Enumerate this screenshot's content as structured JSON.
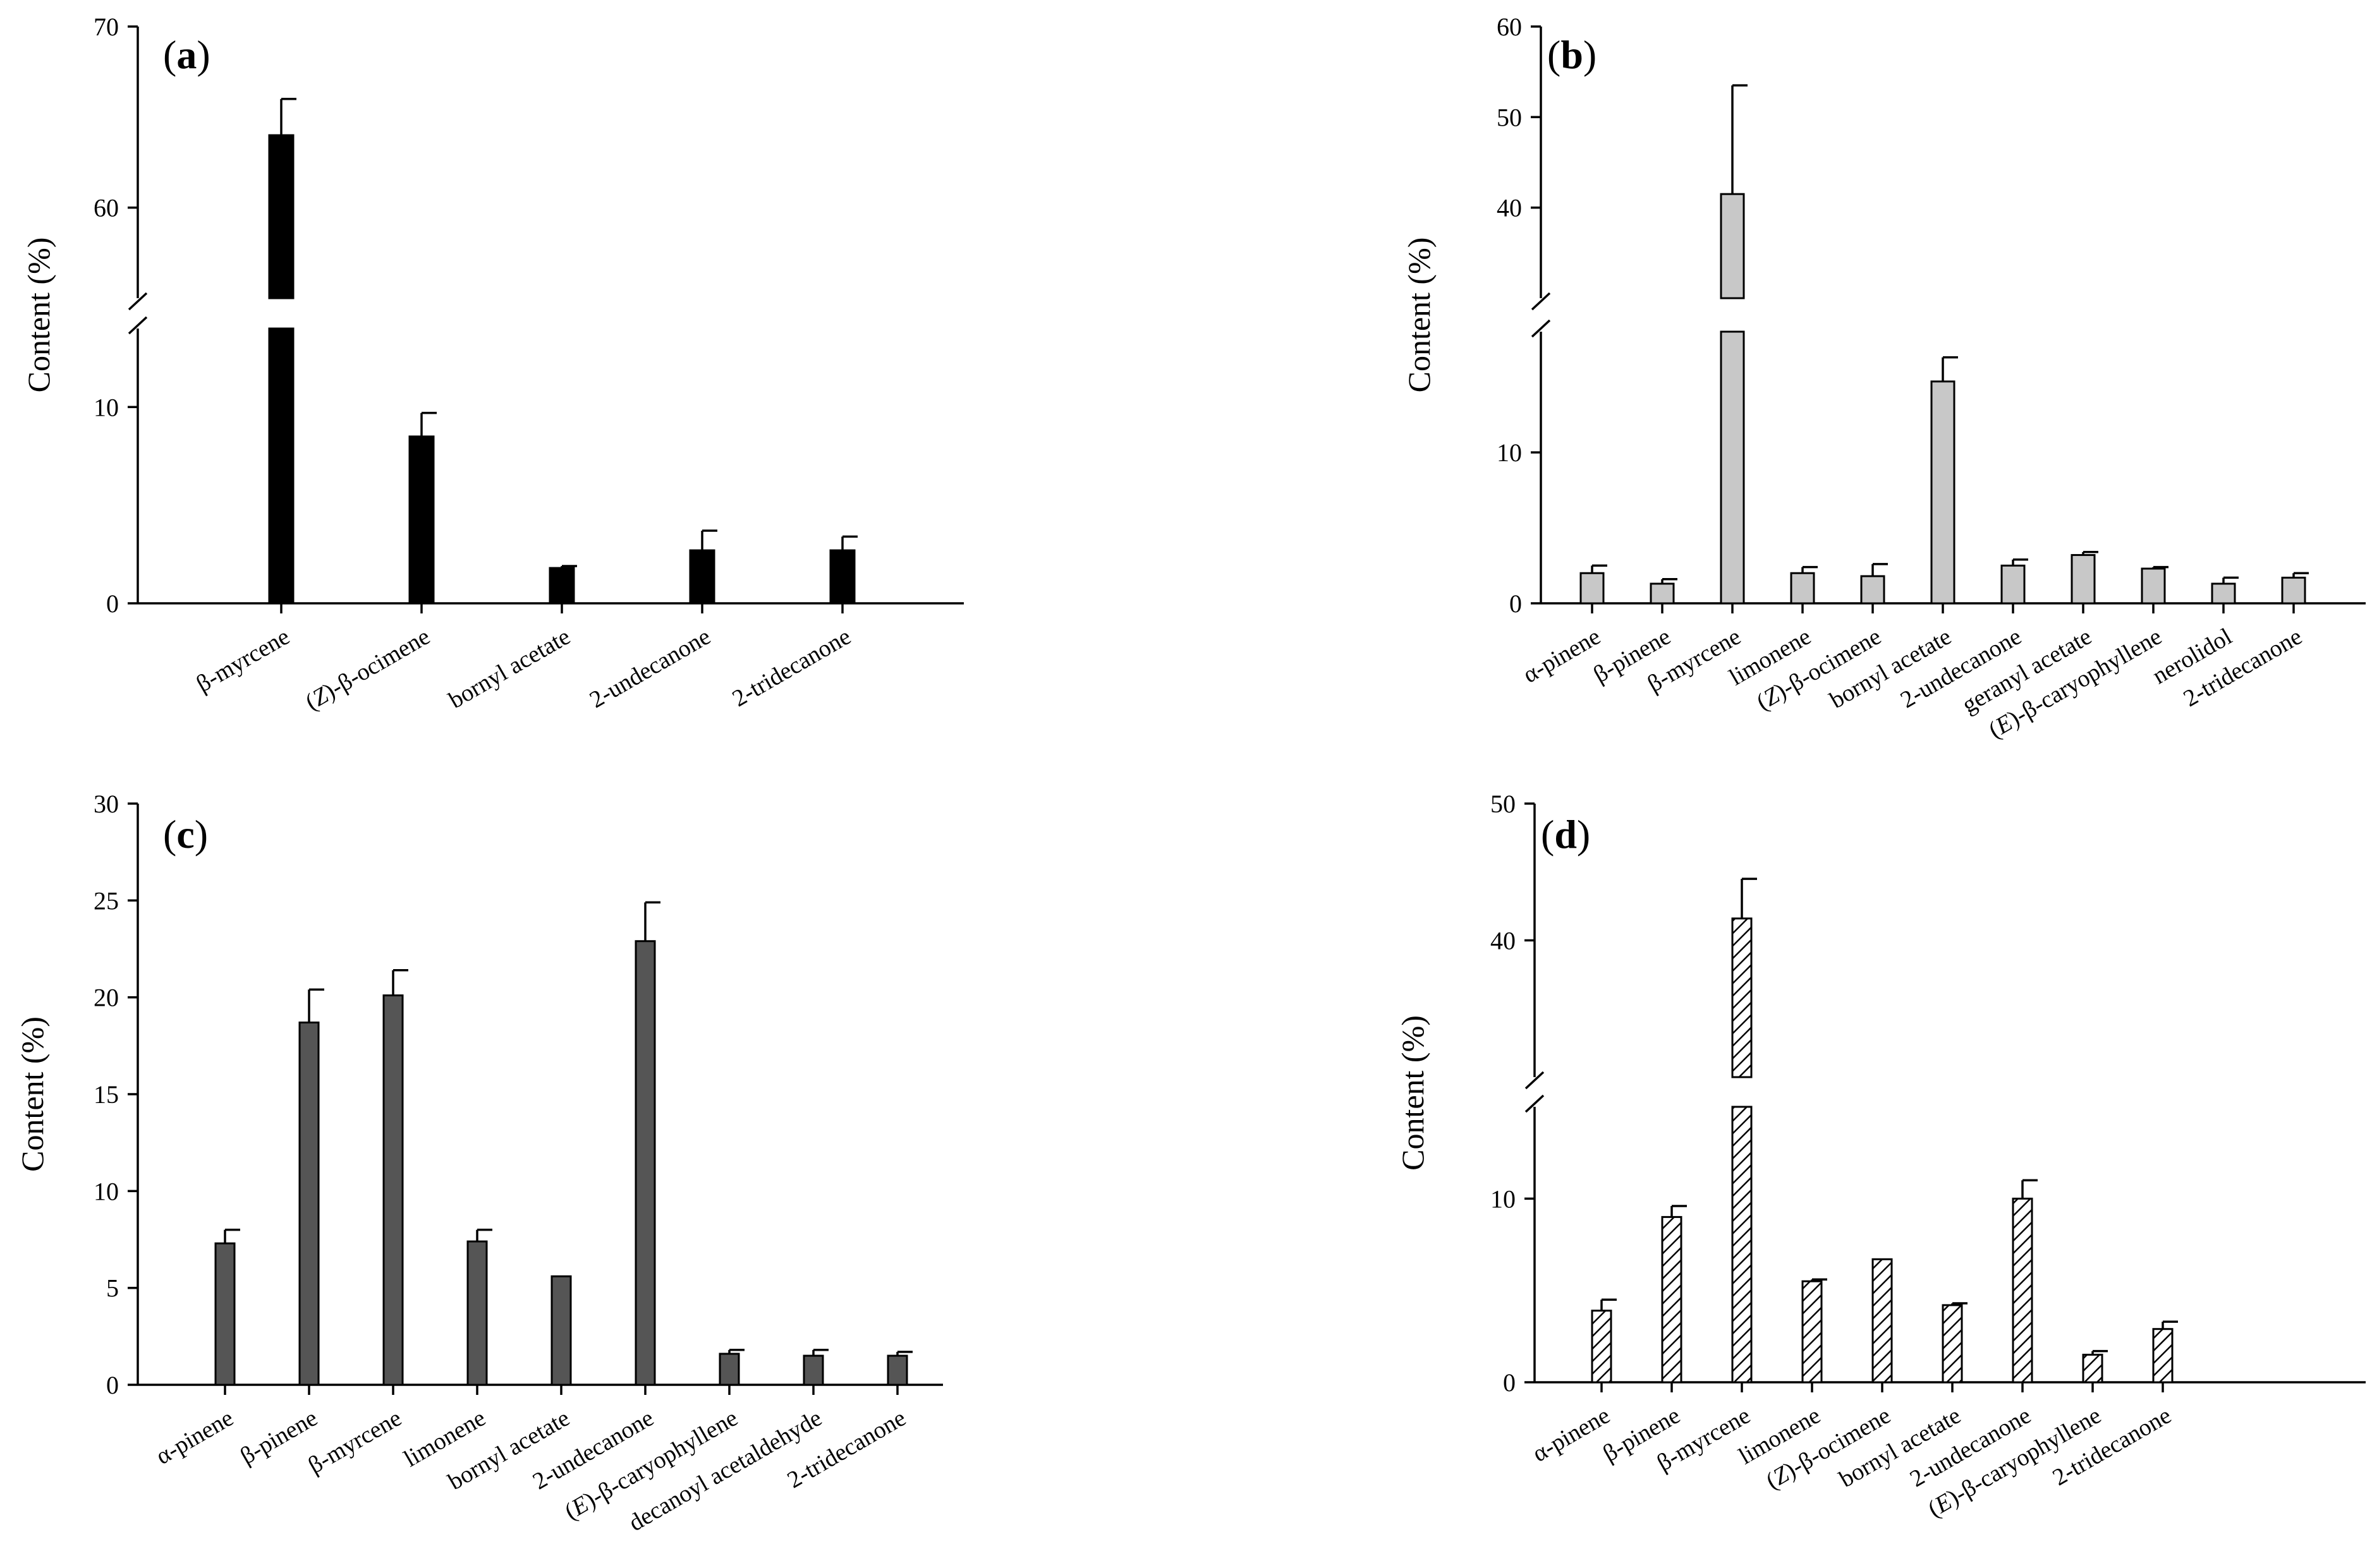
{
  "chart_data": [
    {
      "type": "bar",
      "panel": "a",
      "ylabel": "Content (%)",
      "bar_fill": "#000000",
      "pattern": "solid",
      "y_break": true,
      "lower_ylim": [
        0,
        14
      ],
      "upper_ylim": [
        55,
        70
      ],
      "yticks_lower": [
        0,
        10
      ],
      "yticks_upper": [
        60,
        70
      ],
      "categories": [
        "β-myrcene",
        "(Z)-β-ocimene",
        "bornyl acetate",
        "2-undecanone",
        "2-tridecanone"
      ],
      "values": [
        64.0,
        8.5,
        1.8,
        2.7,
        2.7
      ],
      "errors": [
        2.0,
        1.2,
        0.1,
        1.0,
        0.7
      ]
    },
    {
      "type": "bar",
      "panel": "b",
      "ylabel": "Content (%)",
      "bar_fill": "#c8c8c8",
      "pattern": "solid",
      "y_break": true,
      "lower_ylim": [
        0,
        18
      ],
      "upper_ylim": [
        30,
        60
      ],
      "yticks_lower": [
        0,
        10
      ],
      "yticks_upper": [
        40,
        50,
        60
      ],
      "categories": [
        "α-pinene",
        "β-pinene",
        "β-myrcene",
        "limonene",
        "(Z)-β-ocimene",
        "bornyl acetate",
        "2-undecanone",
        "geranyl acetate",
        "(E)-β-caryophyllene",
        "nerolidol",
        "2-tridecanone"
      ],
      "values": [
        2.0,
        1.3,
        41.5,
        2.0,
        1.8,
        14.7,
        2.5,
        3.2,
        2.3,
        1.3,
        1.7
      ],
      "errors": [
        0.5,
        0.3,
        12.0,
        0.4,
        0.8,
        1.6,
        0.4,
        0.2,
        0.1,
        0.4,
        0.3
      ]
    },
    {
      "type": "bar",
      "panel": "c",
      "ylabel": "Content (%)",
      "bar_fill": "#555555",
      "pattern": "solid",
      "y_break": false,
      "ylim": [
        0,
        30
      ],
      "yticks": [
        0,
        5,
        10,
        15,
        20,
        25,
        30
      ],
      "categories": [
        "α-pinene",
        "β-pinene",
        "β-myrcene",
        "limonene",
        "bornyl acetate",
        "2-undecanone",
        "(E)-β-caryophyllene",
        "decanoyl acetaldehyde",
        "2-tridecanone"
      ],
      "values": [
        7.3,
        18.7,
        20.1,
        7.4,
        5.6,
        22.9,
        1.6,
        1.5,
        1.5
      ],
      "errors": [
        0.7,
        1.7,
        1.3,
        0.6,
        0.0,
        2.0,
        0.2,
        0.3,
        0.2
      ]
    },
    {
      "type": "bar",
      "panel": "d",
      "ylabel": "Content (%)",
      "bar_fill": "#ffffff",
      "pattern": "hatched",
      "y_break": true,
      "lower_ylim": [
        0,
        15
      ],
      "upper_ylim": [
        30,
        50
      ],
      "yticks_lower": [
        0,
        10
      ],
      "yticks_upper": [
        40,
        50
      ],
      "categories": [
        "α-pinene",
        "β-pinene",
        "β-myrcene",
        "limonene",
        "(Z)-β-ocimene",
        "bornyl acetate",
        "2-undecanone",
        "(E)-β-caryophyllene",
        "2-tridecanone"
      ],
      "values": [
        3.9,
        9.0,
        41.6,
        5.5,
        6.7,
        4.2,
        10.0,
        1.5,
        2.9
      ],
      "errors": [
        0.6,
        0.6,
        2.9,
        0.1,
        0.0,
        0.1,
        1.0,
        0.2,
        0.4
      ]
    }
  ]
}
